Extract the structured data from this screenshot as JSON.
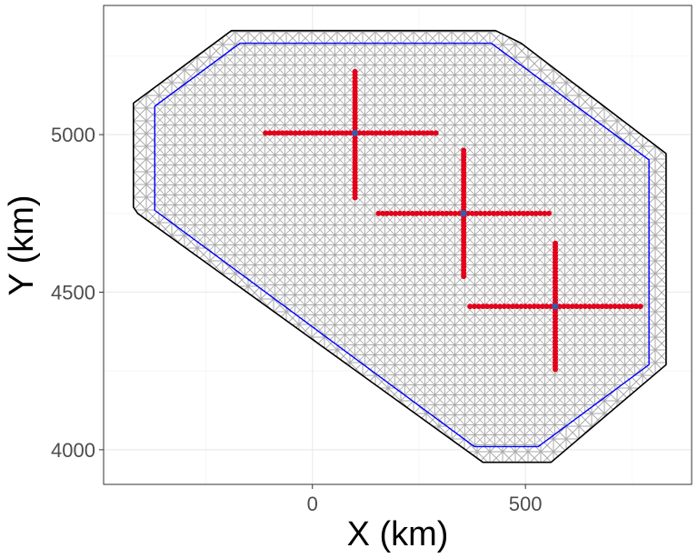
{
  "chart_data": {
    "type": "scatter",
    "title": "",
    "xlabel": "X (km)",
    "ylabel": "Y (km)",
    "xlim": [
      -490,
      890
    ],
    "ylim": [
      3890,
      5410
    ],
    "x_ticks": [
      0,
      500
    ],
    "x_tick_labels": [
      "0",
      "500"
    ],
    "y_ticks": [
      4000,
      4500,
      5000
    ],
    "y_tick_labels": [
      "4000",
      "4500",
      "5000"
    ],
    "x_minor_gridlines": [
      -250,
      250,
      750
    ],
    "y_minor_gridlines": [
      4250,
      4750,
      5250
    ],
    "grid": true,
    "legend": "none",
    "outer_boundary": [
      [
        -180,
        5330
      ],
      [
        430,
        5330
      ],
      [
        490,
        5290
      ],
      [
        830,
        4940
      ],
      [
        830,
        4270
      ],
      [
        560,
        3960
      ],
      [
        400,
        3960
      ],
      [
        -410,
        4750
      ],
      [
        -420,
        4770
      ],
      [
        -420,
        5100
      ],
      [
        -190,
        5330
      ]
    ],
    "inner_boundary": [
      [
        -170,
        5290
      ],
      [
        420,
        5290
      ],
      [
        790,
        4920
      ],
      [
        790,
        4270
      ],
      [
        530,
        4010
      ],
      [
        380,
        4010
      ],
      [
        -370,
        4760
      ],
      [
        -370,
        5090
      ]
    ],
    "cross_centers": [
      {
        "x": 100,
        "y": 5005
      },
      {
        "x": 355,
        "y": 4750
      },
      {
        "x": 570,
        "y": 4455
      }
    ],
    "crosses": [
      {
        "horizontal": {
          "x": [
            -110,
            295
          ],
          "y": 5005
        },
        "vertical": {
          "x": 100,
          "y": [
            4800,
            5205
          ]
        }
      },
      {
        "horizontal": {
          "x": [
            155,
            555
          ],
          "y": 4750
        },
        "vertical": {
          "x": 355,
          "y": [
            4550,
            4950
          ]
        }
      },
      {
        "horizontal": {
          "x": [
            370,
            770
          ],
          "y": 4455
        },
        "vertical": {
          "x": 570,
          "y": [
            4255,
            4655
          ]
        }
      }
    ],
    "colors": {
      "mesh": "#aaaaaa",
      "outer_boundary": "#000000",
      "inner_boundary": "#0000ff",
      "cross_points": "#e3001b",
      "cross_center": "#3b5ba9",
      "grid_major": "#ebebeb",
      "grid_minor": "#f5f5f5",
      "panel_border": "#333333"
    }
  }
}
